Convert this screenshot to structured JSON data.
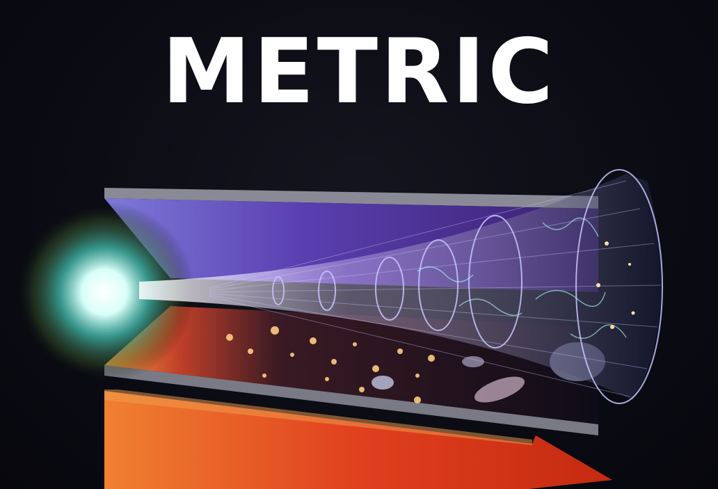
{
  "title": "METRIC",
  "colors": {
    "background": "#0c0c16",
    "title": "#ffffff",
    "arrow": "#e0401e",
    "top_panel": "#5a3fb0",
    "bottom_panel": "#1a1420",
    "cone_lines": "#c9c6ff"
  }
}
